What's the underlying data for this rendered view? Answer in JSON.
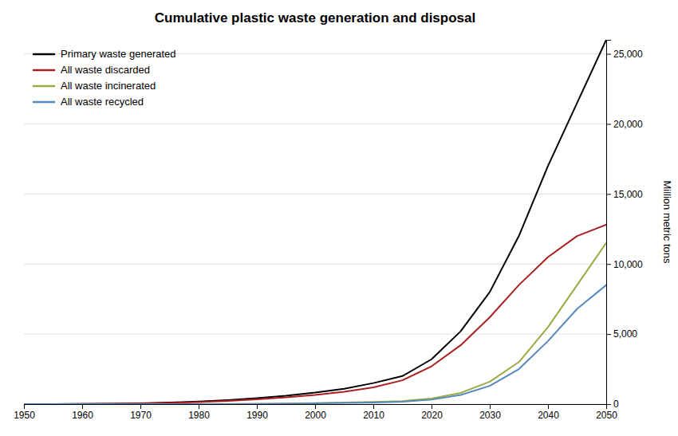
{
  "chart_data": {
    "type": "line",
    "title": "Cumulative plastic waste generation and disposal",
    "y_label": "Million metric tons",
    "x": [
      1950,
      1955,
      1960,
      1965,
      1970,
      1975,
      1980,
      1985,
      1990,
      1995,
      2000,
      2005,
      2010,
      2015,
      2020,
      2025,
      2030,
      2035,
      2040,
      2045,
      2050
    ],
    "series": [
      {
        "name": "Primary waste generated",
        "color": "#000000",
        "values": [
          2,
          5,
          15,
          30,
          60,
          110,
          180,
          290,
          430,
          600,
          820,
          1100,
          1500,
          2000,
          3200,
          5200,
          8000,
          12000,
          17000,
          21500,
          26000
        ]
      },
      {
        "name": "All waste discarded",
        "color": "#aa2020",
        "values": [
          1,
          3,
          10,
          22,
          45,
          85,
          140,
          230,
          340,
          480,
          650,
          880,
          1200,
          1700,
          2700,
          4200,
          6200,
          8500,
          10500,
          12000,
          12800
        ]
      },
      {
        "name": "All waste incinerated",
        "color": "#99aa44",
        "values": [
          0,
          0,
          0,
          0,
          1,
          2,
          5,
          10,
          20,
          40,
          70,
          110,
          160,
          220,
          400,
          800,
          1600,
          3000,
          5500,
          8500,
          11500
        ]
      },
      {
        "name": "All waste recycled",
        "color": "#5588bb",
        "values": [
          0,
          0,
          0,
          0,
          0,
          1,
          3,
          7,
          15,
          30,
          55,
          85,
          120,
          170,
          320,
          650,
          1300,
          2500,
          4500,
          6800,
          8500
        ]
      }
    ],
    "xlim": [
      1950,
      2050
    ],
    "ylim": [
      0,
      26000
    ],
    "xticks": [
      1950,
      1960,
      1970,
      1980,
      1990,
      2000,
      2010,
      2020,
      2030,
      2040,
      2050
    ],
    "yticks": [
      0,
      {
        "value": 5000,
        "label": "5,000"
      },
      {
        "value": 10000,
        "label": "10,000"
      },
      {
        "value": 15000,
        "label": "15,000"
      },
      {
        "value": 20000,
        "label": "20,000"
      },
      {
        "value": 25000,
        "label": "25,000"
      }
    ],
    "grid": true,
    "legend": "top-left"
  }
}
